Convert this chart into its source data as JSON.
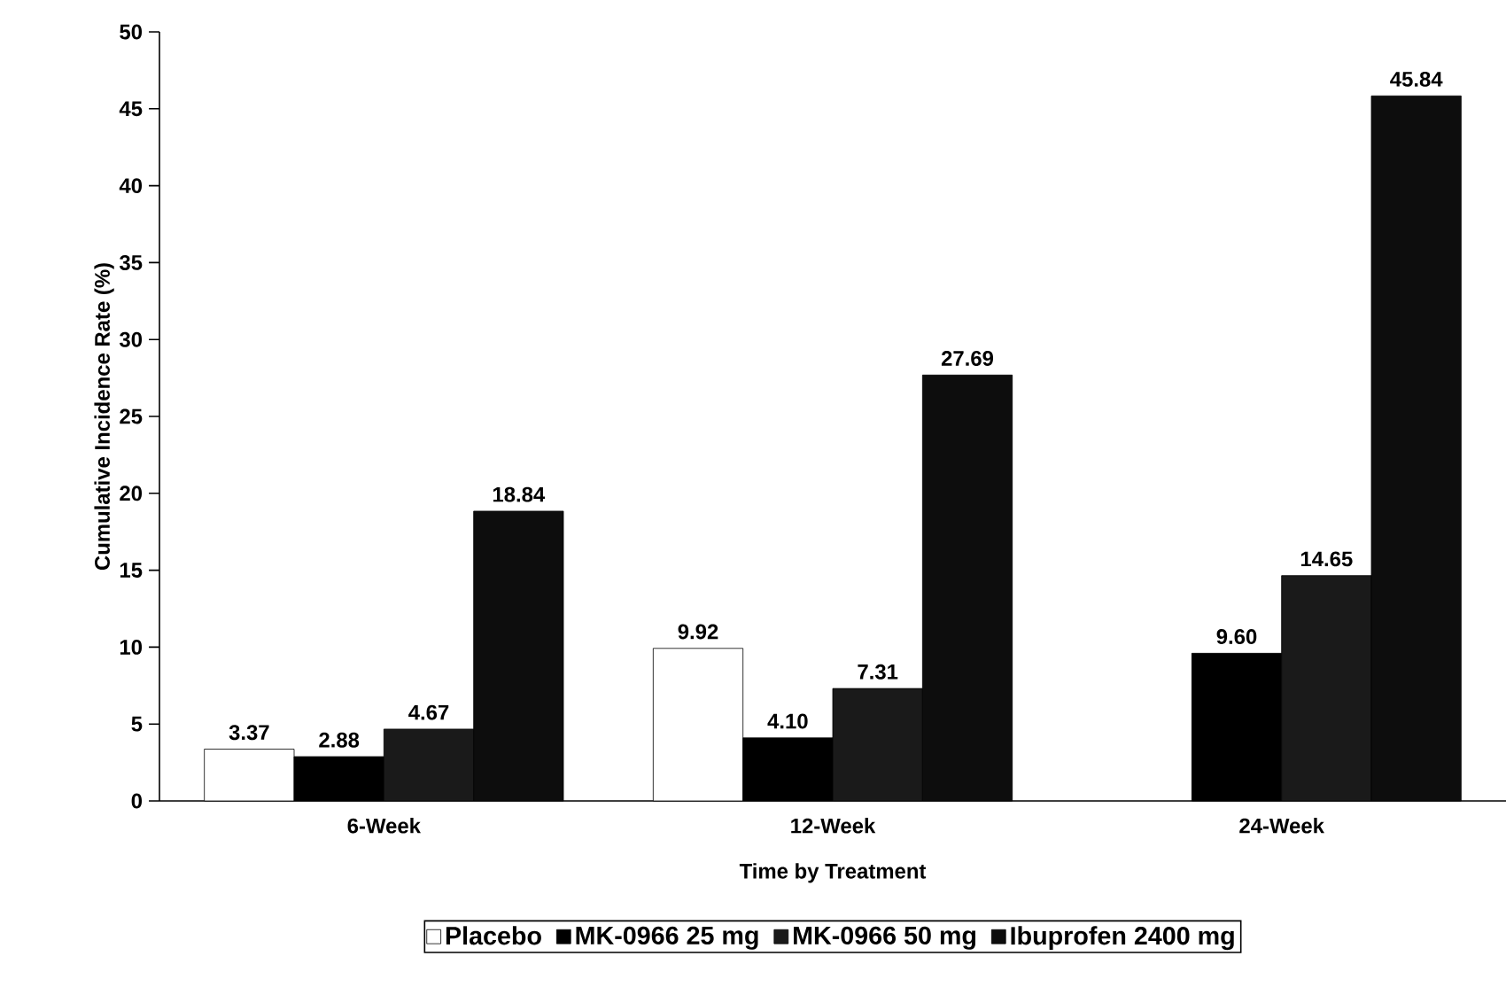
{
  "chart_data": {
    "type": "bar",
    "xlabel": "Time by Treatment",
    "ylabel": "Cumulative Incidence Rate (%)",
    "categories": [
      "6-Week",
      "12-Week",
      "24-Week"
    ],
    "series": [
      {
        "name": "Placebo",
        "color": "#ffffff",
        "values": [
          3.37,
          9.92,
          null
        ],
        "value_labels": [
          "3.37",
          "9.92",
          null
        ]
      },
      {
        "name": "MK-0966 25 mg",
        "color": "#000000",
        "values": [
          2.88,
          4.1,
          9.6
        ],
        "value_labels": [
          "2.88",
          "4.10",
          "9.60"
        ]
      },
      {
        "name": "MK-0966 50 mg",
        "color": "#1a1a1a",
        "values": [
          4.67,
          7.31,
          14.65
        ],
        "value_labels": [
          "4.67",
          "7.31",
          "14.65"
        ]
      },
      {
        "name": "Ibuprofen 2400 mg",
        "color": "#0d0d0d",
        "values": [
          18.84,
          27.69,
          45.84
        ],
        "value_labels": [
          "18.84",
          "27.69",
          "45.84"
        ]
      }
    ],
    "ylim": [
      0,
      50
    ],
    "yticks": [
      0,
      5,
      10,
      15,
      20,
      25,
      30,
      35,
      40,
      45,
      50
    ],
    "grid": false,
    "legend": "bottom"
  }
}
